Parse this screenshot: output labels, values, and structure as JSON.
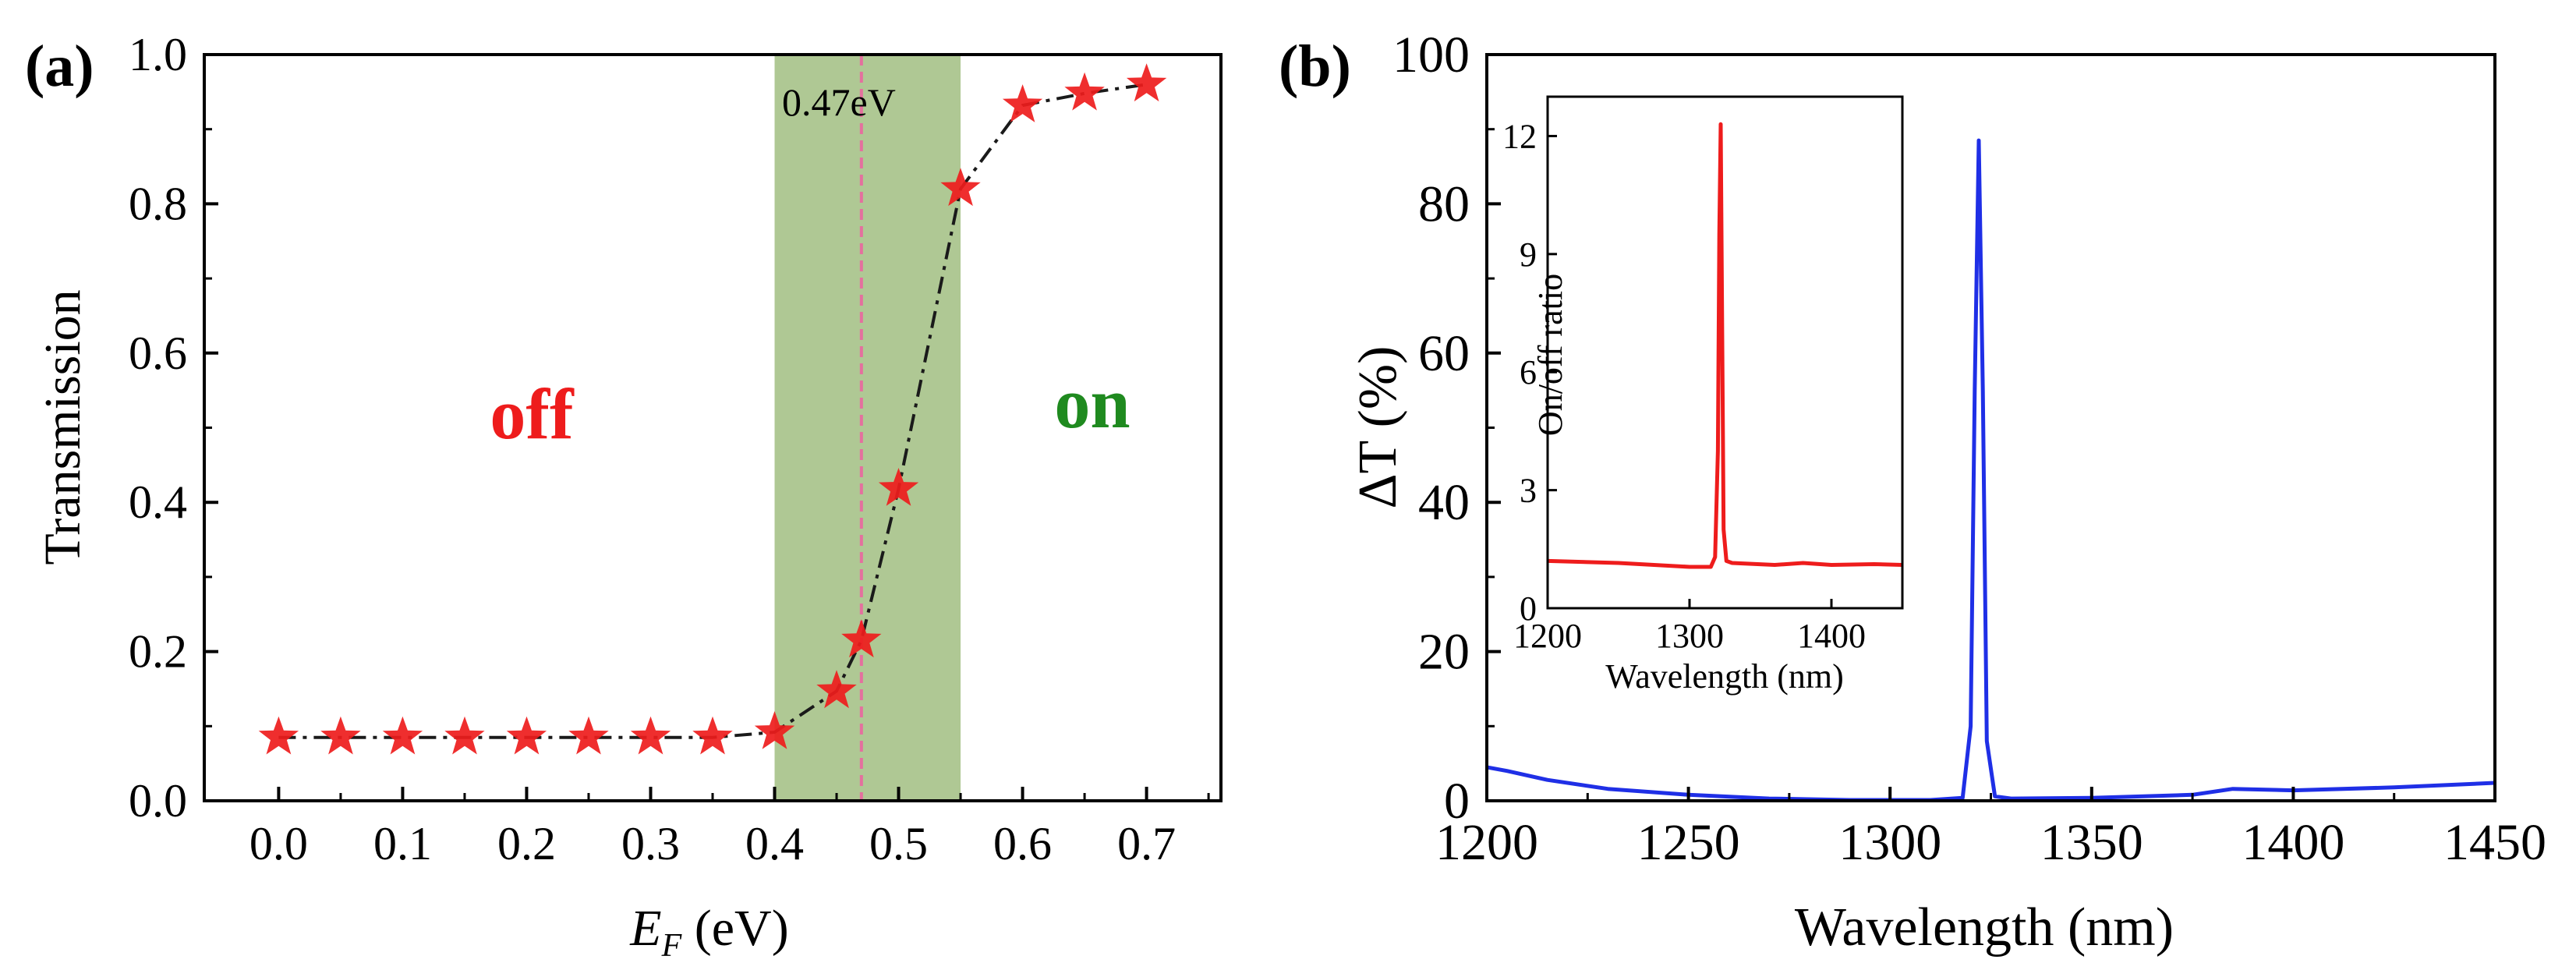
{
  "colors": {
    "star": "#ee1c1c",
    "band": "#6e9a3c",
    "dashed": "#e4709e",
    "off_label": "#ee1c1c",
    "on_label": "#1f8a1f",
    "blue_line": "#1f2fe6",
    "red_line": "#ee1c1c"
  },
  "chart_data": [
    {
      "id": "a",
      "type": "scatter",
      "panel_label": "(a)",
      "xlabel_symbol": "E",
      "xlabel_subscript": "F",
      "xlabel_unit": " (eV)",
      "ylabel": "Transmission",
      "xlim": [
        -0.06,
        0.76
      ],
      "ylim": [
        0,
        1.0
      ],
      "x_ticks": [
        0.0,
        0.1,
        0.2,
        0.3,
        0.4,
        0.5,
        0.6,
        0.7
      ],
      "x_tick_labels": [
        "0.0",
        "0.1",
        "0.2",
        "0.3",
        "0.4",
        "0.5",
        "0.6",
        "0.7"
      ],
      "y_ticks": [
        0.0,
        0.2,
        0.4,
        0.6,
        0.8,
        1.0
      ],
      "y_tick_labels": [
        "0.0",
        "0.2",
        "0.4",
        "0.6",
        "0.8",
        "1.0"
      ],
      "x": [
        0.0,
        0.05,
        0.1,
        0.15,
        0.2,
        0.25,
        0.3,
        0.35,
        0.4,
        0.45,
        0.47,
        0.5,
        0.55,
        0.6,
        0.65,
        0.7
      ],
      "y": [
        0.085,
        0.085,
        0.085,
        0.085,
        0.085,
        0.085,
        0.085,
        0.085,
        0.092,
        0.147,
        0.215,
        0.418,
        0.82,
        0.932,
        0.948,
        0.96
      ],
      "band_range": [
        0.4,
        0.55
      ],
      "threshold_x": 0.47,
      "threshold_label": "0.47eV",
      "off_label": "off",
      "on_label": "on"
    },
    {
      "id": "b",
      "type": "line",
      "panel_label": "(b)",
      "xlabel": "Wavelength (nm)",
      "ylabel": "ΔT (%)",
      "xlim": [
        1200,
        1450
      ],
      "ylim": [
        0,
        100
      ],
      "x_ticks": [
        1200,
        1250,
        1300,
        1350,
        1400,
        1450
      ],
      "x_tick_labels": [
        "1200",
        "1250",
        "1300",
        "1350",
        "1400",
        "1450"
      ],
      "y_ticks": [
        0,
        20,
        40,
        60,
        80,
        100
      ],
      "y_tick_labels": [
        "0",
        "20",
        "40",
        "60",
        "80",
        "100"
      ],
      "series": [
        {
          "name": "ΔT",
          "x": [
            1200,
            1205,
            1215,
            1230,
            1250,
            1270,
            1290,
            1310,
            1318,
            1320,
            1321,
            1322,
            1323,
            1324,
            1326,
            1330,
            1350,
            1375,
            1385,
            1400,
            1425,
            1450
          ],
          "y": [
            4.5,
            4.0,
            2.8,
            1.6,
            0.8,
            0.3,
            0.1,
            0.1,
            0.4,
            10,
            55,
            88.5,
            55,
            8,
            0.6,
            0.3,
            0.4,
            0.8,
            1.6,
            1.4,
            1.8,
            2.4
          ]
        }
      ]
    },
    {
      "id": "b-inset",
      "type": "line",
      "xlabel": "Wavelength (nm)",
      "ylabel": "On/off ratio",
      "xlim": [
        1200,
        1450
      ],
      "ylim": [
        0,
        13
      ],
      "x_ticks": [
        1200,
        1300,
        1400
      ],
      "x_tick_labels": [
        "1200",
        "1300",
        "1400"
      ],
      "y_ticks": [
        0,
        3,
        6,
        9,
        12
      ],
      "y_tick_labels": [
        "0",
        "3",
        "6",
        "9",
        "12"
      ],
      "series": [
        {
          "name": "On/off ratio",
          "x": [
            1200,
            1250,
            1300,
            1315,
            1318,
            1320,
            1321,
            1322,
            1323,
            1324,
            1326,
            1330,
            1360,
            1380,
            1400,
            1430,
            1450
          ],
          "y": [
            1.2,
            1.15,
            1.05,
            1.05,
            1.3,
            4.0,
            9.5,
            12.3,
            7.0,
            2.0,
            1.2,
            1.15,
            1.1,
            1.15,
            1.1,
            1.12,
            1.1
          ]
        }
      ]
    }
  ]
}
